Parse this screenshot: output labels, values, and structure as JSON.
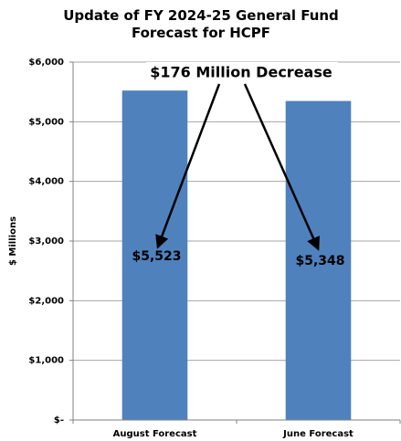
{
  "chart_data": {
    "type": "bar",
    "title": "Update of FY 2024-25 General Fund Forecast for HCPF",
    "ylabel": "$ Millions",
    "annotation": "$176 Million Decrease",
    "categories": [
      "August Forecast",
      "June Forecast"
    ],
    "values": [
      5523,
      5348
    ],
    "value_labels": [
      "$5,523",
      "$5,348"
    ],
    "color": "#4f81bd",
    "ylim": [
      0,
      6000
    ],
    "yticks": [
      {
        "value": 0,
        "label": "$-"
      },
      {
        "value": 1000,
        "label": "$1,000"
      },
      {
        "value": 2000,
        "label": "$2,000"
      },
      {
        "value": 3000,
        "label": "$3,000"
      },
      {
        "value": 4000,
        "label": "$4,000"
      },
      {
        "value": 5000,
        "label": "$5,000"
      },
      {
        "value": 6000,
        "label": "$6,000"
      }
    ],
    "grid": true
  }
}
